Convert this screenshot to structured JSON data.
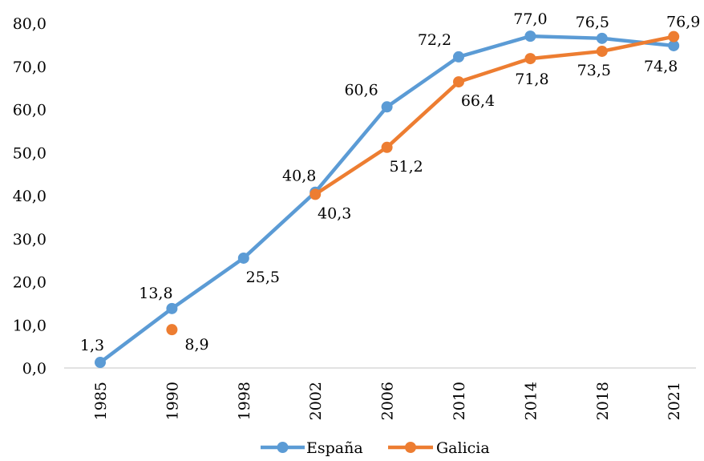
{
  "chart_data": {
    "type": "line",
    "title": "",
    "xlabel": "",
    "ylabel": "",
    "categories": [
      "1985",
      "1990",
      "1998",
      "2002",
      "2006",
      "2010",
      "2014",
      "2018",
      "2021"
    ],
    "ylim": [
      0,
      80
    ],
    "y_ticks": [
      "0,0",
      "10,0",
      "20,0",
      "30,0",
      "40,0",
      "50,0",
      "60,0",
      "70,0",
      "80,0"
    ],
    "grid": false,
    "legend_position": "bottom",
    "series": [
      {
        "name": "España",
        "color": "#5b9bd5",
        "values": [
          1.3,
          13.8,
          25.5,
          40.8,
          60.6,
          72.2,
          77.0,
          76.5,
          74.8
        ],
        "labels": [
          "1,3",
          "13,8",
          "25,5",
          "40,8",
          "60,6",
          "72,2",
          "77,0",
          "76,5",
          "74,8"
        ]
      },
      {
        "name": "Galicia",
        "color": "#ed7d31",
        "values": [
          null,
          8.9,
          null,
          40.3,
          51.2,
          66.4,
          71.8,
          73.5,
          76.9
        ],
        "labels": [
          null,
          "8,9",
          null,
          "40,3",
          "51,2",
          "66,4",
          "71,8",
          "73,5",
          "76,9"
        ]
      }
    ]
  }
}
